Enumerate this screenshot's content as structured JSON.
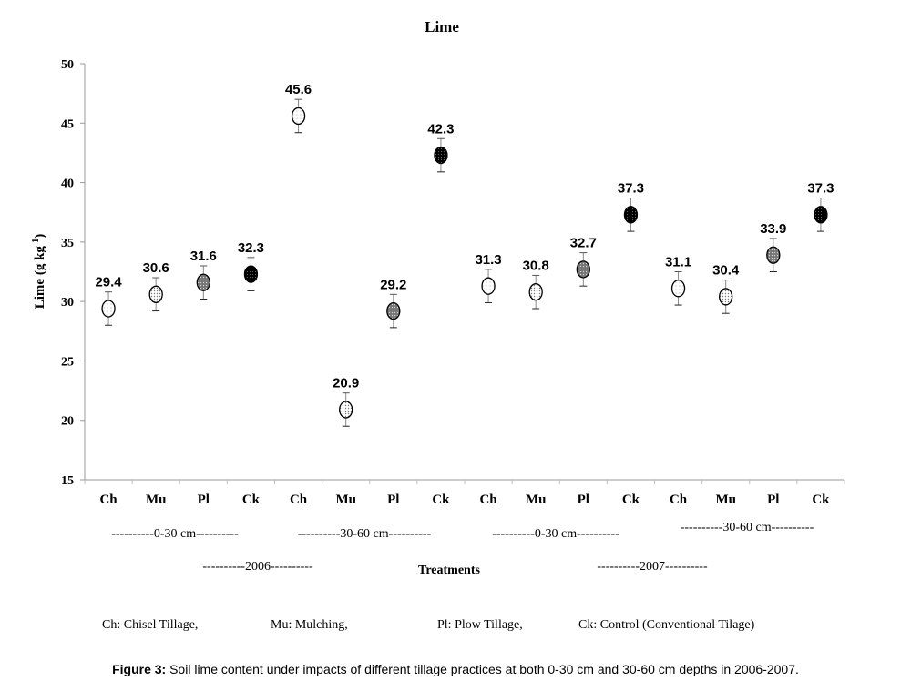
{
  "chart_data": {
    "type": "scatter",
    "title": "Lime",
    "ylabel": "Lime (g kg-1)",
    "ylabel_main": "Lime (g kg",
    "ylabel_sup": "-1",
    "ylabel_end": ")",
    "xlabel": "Treatments",
    "ylim": [
      15,
      50
    ],
    "yticks": [
      15,
      20,
      25,
      30,
      35,
      40,
      45,
      50
    ],
    "grid": false,
    "categories": [
      "Ch",
      "Mu",
      "Pl",
      "Ck",
      "Ch",
      "Mu",
      "Pl",
      "Ck",
      "Ch",
      "Mu",
      "Pl",
      "Ck",
      "Ch",
      "Mu",
      "Pl",
      "Ck"
    ],
    "values": [
      29.4,
      30.6,
      31.6,
      32.3,
      45.6,
      20.9,
      29.2,
      42.3,
      31.3,
      30.8,
      32.7,
      37.3,
      31.1,
      30.4,
      33.9,
      37.3
    ],
    "value_labels": [
      "29.4",
      "30.6",
      "31.6",
      "32.3",
      "45.6",
      "20.9",
      "29.2",
      "42.3",
      "31.3",
      "30.8",
      "32.7",
      "37.3",
      "31.1",
      "30.4",
      "33.9",
      "37.3"
    ],
    "error": [
      1.4,
      1.4,
      1.4,
      1.4,
      1.4,
      1.4,
      1.4,
      1.4,
      1.4,
      1.4,
      1.4,
      1.4,
      1.4,
      1.4,
      1.4,
      1.4
    ],
    "depth_groups": [
      "----------0-30 cm----------",
      "----------30-60 cm----------",
      "----------0-30 cm----------",
      "----------30-60 cm----------"
    ],
    "year_groups": [
      "----------2006----------",
      "----------2007----------"
    ],
    "legend": [
      "Ch: Chisel Tillage,",
      "Mu: Mulching,",
      "Pl: Plow Tillage,",
      "Ck: Control (Conventional Tilage)"
    ],
    "marker_fills": {
      "Ch": "#ffffff",
      "Mu": "#e6e6e6",
      "Pl": "#8c8c8c",
      "Ck": "#111111"
    }
  },
  "caption": {
    "label": "Figure 3:",
    "text": " Soil lime content under impacts of different tillage practices at both 0-30 cm and 30-60 cm depths in 2006-2007."
  }
}
